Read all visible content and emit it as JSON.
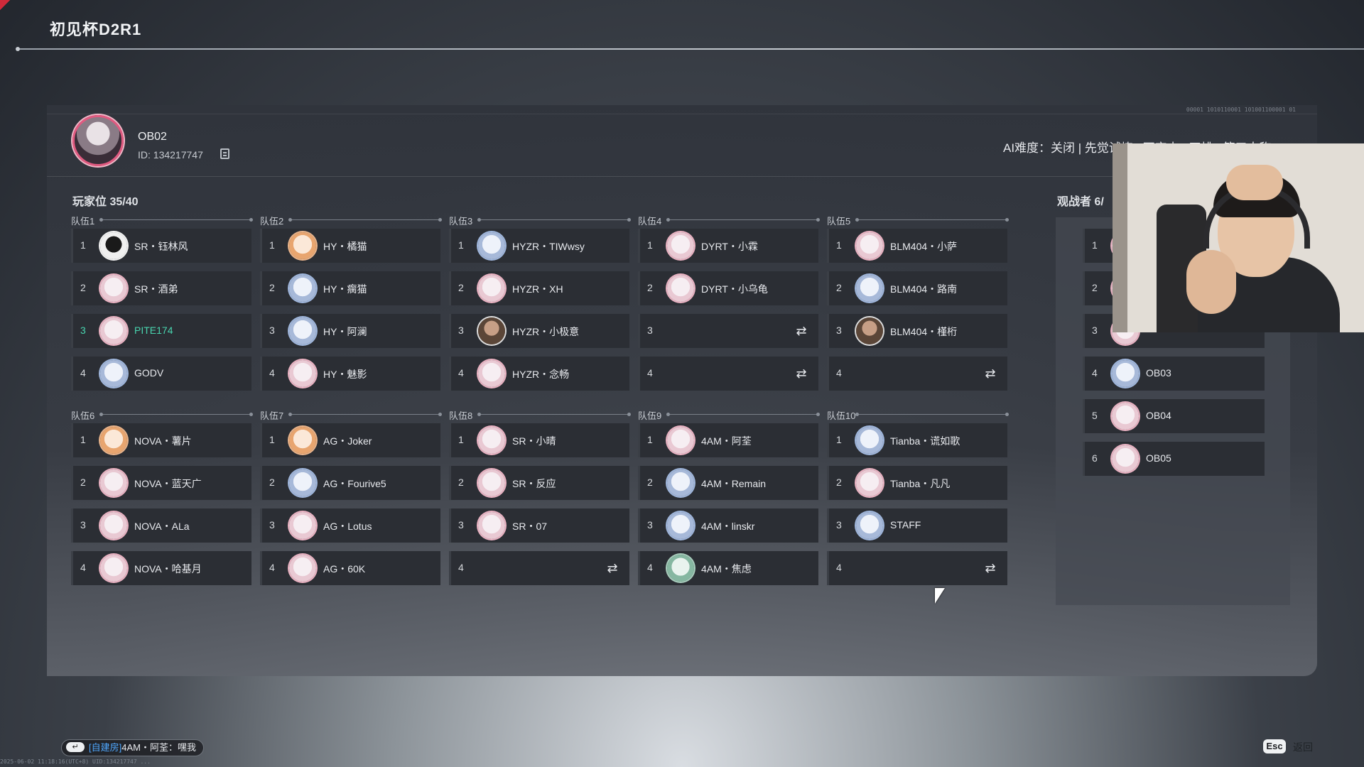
{
  "title": "初见杯D2R1",
  "profile": {
    "name": "OB02",
    "id": "ID:  134217747"
  },
  "settings_text": "AI难度：关闭 | 先觉试炼 | 不定电 | 四排 | 第三人称",
  "players_label": "玩家位 35/40",
  "observers_label": "观战者 6/",
  "teams": [
    {
      "name": "队伍1",
      "slots": [
        {
          "num": "1",
          "name": "SR・钰林风",
          "avatar": "dark"
        },
        {
          "num": "2",
          "name": "SR・酒弟",
          "avatar": "pink"
        },
        {
          "num": "3",
          "name": "PITE174",
          "avatar": "pink",
          "me": true
        },
        {
          "num": "4",
          "name": "GODV",
          "avatar": "blue"
        }
      ]
    },
    {
      "name": "队伍2",
      "slots": [
        {
          "num": "1",
          "name": "HY・橘猫",
          "avatar": "orange"
        },
        {
          "num": "2",
          "name": "HY・瘸猫",
          "avatar": "blue"
        },
        {
          "num": "3",
          "name": "HY・阿澜",
          "avatar": "blue"
        },
        {
          "num": "4",
          "name": "HY・魅影",
          "avatar": "pink"
        }
      ]
    },
    {
      "name": "队伍3",
      "slots": [
        {
          "num": "1",
          "name": "HYZR・TIWwsy",
          "avatar": "blue"
        },
        {
          "num": "2",
          "name": "HYZR・XH",
          "avatar": "pink"
        },
        {
          "num": "3",
          "name": "HYZR・小极意",
          "avatar": "photo"
        },
        {
          "num": "4",
          "name": "HYZR・念畅",
          "avatar": "pink"
        }
      ]
    },
    {
      "name": "队伍4",
      "slots": [
        {
          "num": "1",
          "name": "DYRT・小霖",
          "avatar": "pink"
        },
        {
          "num": "2",
          "name": "DYRT・小乌龟",
          "avatar": "pink"
        },
        {
          "num": "3",
          "name": "",
          "avatar": "",
          "empty": true
        },
        {
          "num": "4",
          "name": "",
          "avatar": "",
          "empty": true
        }
      ]
    },
    {
      "name": "队伍5",
      "slots": [
        {
          "num": "1",
          "name": "BLM404・小萨",
          "avatar": "pink"
        },
        {
          "num": "2",
          "name": "BLM404・路南",
          "avatar": "blue"
        },
        {
          "num": "3",
          "name": "BLM404・槿桁",
          "avatar": "photo"
        },
        {
          "num": "4",
          "name": "",
          "avatar": "",
          "empty": true
        }
      ]
    },
    {
      "name": "队伍6",
      "slots": [
        {
          "num": "1",
          "name": "NOVA・薯片",
          "avatar": "orange"
        },
        {
          "num": "2",
          "name": "NOVA・蓝天广",
          "avatar": "pink"
        },
        {
          "num": "3",
          "name": "NOVA・ALa",
          "avatar": "pink"
        },
        {
          "num": "4",
          "name": "NOVA・哈基月",
          "avatar": "pink"
        }
      ]
    },
    {
      "name": "队伍7",
      "slots": [
        {
          "num": "1",
          "name": "AG・Joker",
          "avatar": "orange"
        },
        {
          "num": "2",
          "name": "AG・Fourive5",
          "avatar": "blue"
        },
        {
          "num": "3",
          "name": "AG・Lotus",
          "avatar": "pink"
        },
        {
          "num": "4",
          "name": "AG・60K",
          "avatar": "pink"
        }
      ]
    },
    {
      "name": "队伍8",
      "slots": [
        {
          "num": "1",
          "name": "SR・小晴",
          "avatar": "pink"
        },
        {
          "num": "2",
          "name": "SR・反应",
          "avatar": "pink"
        },
        {
          "num": "3",
          "name": "SR・07",
          "avatar": "pink"
        },
        {
          "num": "4",
          "name": "",
          "avatar": "",
          "empty": true
        }
      ]
    },
    {
      "name": "队伍9",
      "slots": [
        {
          "num": "1",
          "name": "4AM・阿荃",
          "avatar": "pink"
        },
        {
          "num": "2",
          "name": "4AM・Remain",
          "avatar": "blue"
        },
        {
          "num": "3",
          "name": "4AM・linskr",
          "avatar": "blue"
        },
        {
          "num": "4",
          "name": "4AM・焦虑",
          "avatar": "green"
        }
      ]
    },
    {
      "name": "队伍10",
      "slots": [
        {
          "num": "1",
          "name": "Tianba・谎如歌",
          "avatar": "blue"
        },
        {
          "num": "2",
          "name": "Tianba・凡凡",
          "avatar": "pink"
        },
        {
          "num": "3",
          "name": "STAFF",
          "avatar": "blue"
        },
        {
          "num": "4",
          "name": "",
          "avatar": "",
          "empty": true
        }
      ]
    }
  ],
  "observers": [
    {
      "num": "1",
      "name": "",
      "avatar": "pink"
    },
    {
      "num": "2",
      "name": "",
      "avatar": "pink"
    },
    {
      "num": "3",
      "name": "",
      "avatar": "pink"
    },
    {
      "num": "4",
      "name": "OB03",
      "avatar": "blue"
    },
    {
      "num": "5",
      "name": "OB04",
      "avatar": "pink"
    },
    {
      "num": "6",
      "name": "OB05",
      "avatar": "pink"
    }
  ],
  "swap_glyph": "⇄",
  "chat": {
    "enter_glyph": "↵",
    "tag": "[自建房]",
    "message": "4AM・阿荃：嘿我"
  },
  "status_line": "2025-06-02 11:18:16(UTC+8)  UID:134217747  ...",
  "footer": {
    "esc": "Esc",
    "back": "返回"
  },
  "deco_code": "00001 1010110001 101001100001 01"
}
